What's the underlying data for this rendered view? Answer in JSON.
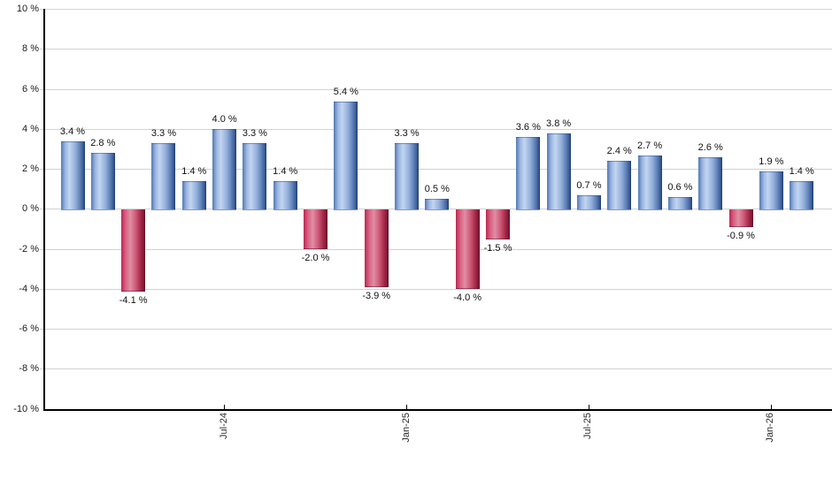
{
  "chart_data": {
    "type": "bar",
    "title": "",
    "xlabel": "",
    "ylabel": "",
    "ylim": [
      -10,
      10
    ],
    "grid": true,
    "legend": "none",
    "values": [
      3.4,
      2.8,
      -4.1,
      3.3,
      1.4,
      4.0,
      3.3,
      1.4,
      -2.0,
      5.4,
      -3.9,
      3.3,
      0.5,
      -4.0,
      -1.5,
      3.6,
      3.8,
      0.7,
      2.4,
      2.7,
      0.6,
      2.6,
      -0.9,
      1.9,
      1.4
    ],
    "bar_labels": [
      "3.4 %",
      "2.8 %",
      "-4.1 %",
      "3.3 %",
      "1.4 %",
      "4.0 %",
      "3.3 %",
      "1.4 %",
      "-2.0 %",
      "5.4 %",
      "-3.9 %",
      "3.3 %",
      "0.5 %",
      "-4.0 %",
      "-1.5 %",
      "3.6 %",
      "3.8 %",
      "0.7 %",
      "2.4 %",
      "2.7 %",
      "0.6 %",
      "2.6 %",
      "-0.9 %",
      "1.9 %",
      "1.4 %"
    ],
    "x_ticks": [
      {
        "label": "Jul-24",
        "index": 5
      },
      {
        "label": "Jan-25",
        "index": 11
      },
      {
        "label": "Jul-25",
        "index": 17
      },
      {
        "label": "Jan-26",
        "index": 23
      }
    ],
    "y_ticks": [
      {
        "label": "10 %",
        "value": 10
      },
      {
        "label": "8 %",
        "value": 8
      },
      {
        "label": "6 %",
        "value": 6
      },
      {
        "label": "4 %",
        "value": 4
      },
      {
        "label": "2 %",
        "value": 2
      },
      {
        "label": "0 %",
        "value": 0
      },
      {
        "label": "-2 %",
        "value": -2
      },
      {
        "label": "-4 %",
        "value": -4
      },
      {
        "label": "-6 %",
        "value": -6
      },
      {
        "label": "-8 %",
        "value": -8
      },
      {
        "label": "-10 %",
        "value": -10
      }
    ],
    "colors": {
      "positive_bar_edge": "#5279b4",
      "positive_bar_highlight": "#c3d5f1",
      "positive_bar_dark_edge": "#1e3c6e",
      "negative_bar_edge": "#bb2653",
      "negative_bar_highlight": "#e08ea5",
      "negative_bar_dark_edge": "#5f1027",
      "gridline": "#d2d2d2",
      "axis": "#000000",
      "label_text": "#111111"
    }
  }
}
